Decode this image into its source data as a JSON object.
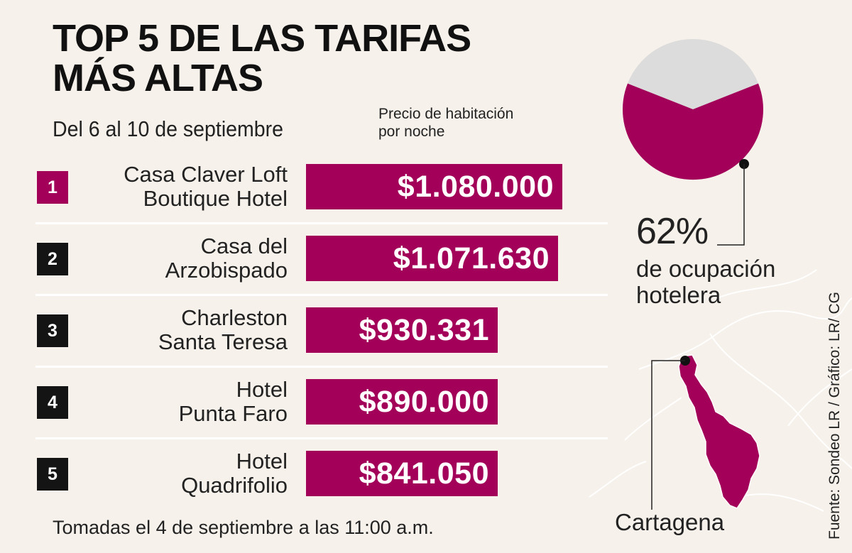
{
  "title_line1": "TOP 5 DE LAS TARIFAS",
  "title_line2": "MÁS ALTAS",
  "subtitle": "Del 6 al 10 de septiembre",
  "price_note_line1": "Precio de habitación",
  "price_note_line2": "por noche",
  "chart_data": {
    "type": "bar",
    "orientation": "horizontal",
    "title": "TOP 5 DE LAS TARIFAS MÁS ALTAS",
    "subtitle": "Del 6 al 10 de septiembre",
    "ylabel": "Precio de habitación por noche",
    "ranks": [
      "1",
      "2",
      "3",
      "4",
      "5"
    ],
    "categories": [
      [
        "Casa Claver Loft",
        "Boutique Hotel"
      ],
      [
        "Casa del",
        "Arzobispado"
      ],
      [
        "Charleston",
        "Santa Teresa"
      ],
      [
        "Hotel",
        "Punta Faro"
      ],
      [
        "Hotel",
        "Quadrifolio"
      ]
    ],
    "values": [
      1080000,
      1071630,
      930331,
      890000,
      841050
    ],
    "value_labels": [
      "$1.080.000",
      "$1.071.630",
      "$930.331",
      "$890.000",
      "$841.050"
    ],
    "xlim": [
      0,
      1080000
    ]
  },
  "occupancy": {
    "type": "pie",
    "value_percent": 62,
    "value_label": "62%",
    "label_line1": "de ocupación",
    "label_line2": "hotelera"
  },
  "city": "Cartagena",
  "footnote": "Tomadas el 4 de septiembre a las 11:00 a.m.",
  "source": "Fuente: Sondeo LR / Gráfico: LR/ CG",
  "colors": {
    "accent": "#a3005a",
    "rank_dark": "#141414",
    "pie_rest": "#dcdcdc",
    "background": "#f6f1ea"
  }
}
